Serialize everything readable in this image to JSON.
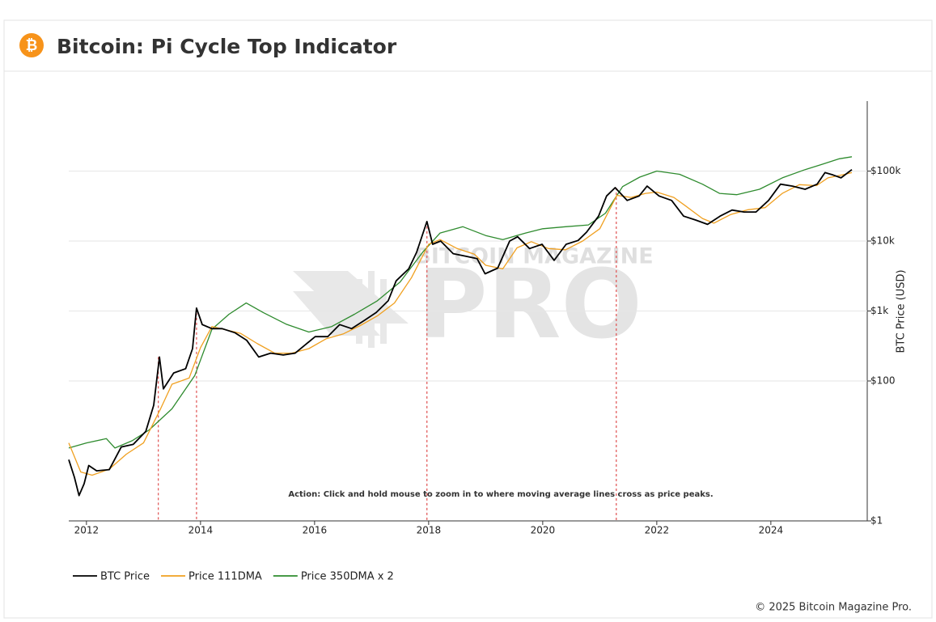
{
  "chart_data": {
    "type": "line",
    "title": "Bitcoin: Pi Cycle Top Indicator",
    "icon": "₿",
    "ylabel": "BTC Price (USD)",
    "annotation": "Action: Click and hold mouse to zoom in to where moving average lines cross as price peaks.",
    "watermark": [
      "BITCOIN MAGAZINE",
      "PRO"
    ],
    "copyright": "© 2025 Bitcoin Magazine Pro.",
    "yscale": "log",
    "grid": true,
    "legend": "bottom-left",
    "xlim": [
      2011.69,
      2025.69
    ],
    "xticks": [
      2012,
      2014,
      2016,
      2018,
      2020,
      2022,
      2024
    ],
    "ylim": [
      1,
      1000000
    ],
    "yticks": [
      {
        "value": 1,
        "label": "$1"
      },
      {
        "value": 100,
        "label": "$100"
      },
      {
        "value": 1000,
        "label": "$1k"
      },
      {
        "value": 10000,
        "label": "$10k"
      },
      {
        "value": 100000,
        "label": "$100k"
      }
    ],
    "crossovers": {
      "color": "#e05050",
      "x": [
        2013.26,
        2013.93,
        2017.97,
        2021.29
      ]
    },
    "series": [
      {
        "name": "BTC Price",
        "color": "#000000",
        "x": [
          2011.69,
          2011.79,
          2011.87,
          2011.96,
          2012.04,
          2012.18,
          2012.4,
          2012.61,
          2012.82,
          2013.04,
          2013.18,
          2013.28,
          2013.35,
          2013.53,
          2013.74,
          2013.86,
          2013.93,
          2014.03,
          2014.2,
          2014.38,
          2014.6,
          2014.81,
          2015.02,
          2015.23,
          2015.45,
          2015.66,
          2015.84,
          2016.01,
          2016.23,
          2016.44,
          2016.65,
          2016.87,
          2017.08,
          2017.29,
          2017.43,
          2017.65,
          2017.79,
          2017.97,
          2018.07,
          2018.21,
          2018.43,
          2018.64,
          2018.85,
          2018.99,
          2019.21,
          2019.42,
          2019.56,
          2019.77,
          2019.99,
          2020.2,
          2020.41,
          2020.62,
          2020.77,
          2020.98,
          2021.12,
          2021.27,
          2021.48,
          2021.69,
          2021.83,
          2022.04,
          2022.26,
          2022.47,
          2022.68,
          2022.89,
          2023.11,
          2023.32,
          2023.53,
          2023.74,
          2023.96,
          2024.17,
          2024.38,
          2024.6,
          2024.81,
          2024.95,
          2025.09,
          2025.23,
          2025.42
        ],
        "values": [
          7.5,
          4.2,
          2.3,
          3.4,
          6.2,
          5.2,
          5.4,
          11.4,
          12.4,
          19,
          45,
          220,
          77,
          130,
          150,
          290,
          1100,
          640,
          560,
          560,
          490,
          380,
          220,
          250,
          235,
          250,
          330,
          430,
          430,
          640,
          560,
          730,
          950,
          1400,
          2700,
          4000,
          6900,
          19000,
          9000,
          10000,
          6600,
          6100,
          5600,
          3400,
          4100,
          10000,
          11500,
          7800,
          9000,
          5300,
          9000,
          10200,
          13400,
          22700,
          44000,
          58000,
          38000,
          44000,
          61000,
          44000,
          38000,
          22700,
          20000,
          17300,
          22700,
          27700,
          26000,
          26000,
          38000,
          65000,
          61000,
          55000,
          65000,
          95000,
          88000,
          80000,
          105000
        ]
      },
      {
        "name": "Price 111DMA",
        "color": "#f0a020",
        "x": [
          2011.69,
          2011.9,
          2012.1,
          2012.4,
          2012.7,
          2013.0,
          2013.3,
          2013.5,
          2013.8,
          2014.0,
          2014.2,
          2014.4,
          2014.7,
          2015.0,
          2015.3,
          2015.6,
          2015.9,
          2016.2,
          2016.5,
          2016.8,
          2017.1,
          2017.4,
          2017.7,
          2018.0,
          2018.2,
          2018.5,
          2018.8,
          2019.0,
          2019.3,
          2019.55,
          2019.8,
          2020.1,
          2020.4,
          2020.7,
          2021.0,
          2021.3,
          2021.55,
          2021.8,
          2022.0,
          2022.3,
          2022.5,
          2022.8,
          2023.0,
          2023.3,
          2023.6,
          2023.9,
          2024.2,
          2024.5,
          2024.8,
          2025.0,
          2025.3,
          2025.42
        ],
        "values": [
          13,
          5,
          4.5,
          5.5,
          9,
          13,
          40,
          90,
          110,
          300,
          600,
          550,
          480,
          340,
          250,
          250,
          290,
          400,
          470,
          620,
          850,
          1300,
          3000,
          9000,
          10500,
          7800,
          6500,
          4500,
          4000,
          8000,
          9800,
          7800,
          7500,
          10000,
          15000,
          45000,
          42000,
          48000,
          50000,
          42000,
          32000,
          21000,
          18000,
          24000,
          28000,
          30000,
          48000,
          64000,
          62000,
          80000,
          90000,
          95000
        ]
      },
      {
        "name": "Price 350DMA x 2",
        "color": "#2e8b2e",
        "x": [
          2011.69,
          2012.0,
          2012.35,
          2012.5,
          2012.8,
          2013.1,
          2013.5,
          2013.9,
          2014.2,
          2014.5,
          2014.8,
          2015.1,
          2015.5,
          2015.9,
          2016.3,
          2016.7,
          2017.1,
          2017.5,
          2017.9,
          2018.2,
          2018.6,
          2019.0,
          2019.3,
          2019.7,
          2020.0,
          2020.4,
          2020.8,
          2021.1,
          2021.4,
          2021.7,
          2022.0,
          2022.4,
          2022.8,
          2023.1,
          2023.4,
          2023.8,
          2024.2,
          2024.6,
          2024.9,
          2025.2,
          2025.42
        ],
        "values": [
          11,
          13,
          15,
          11,
          14,
          20,
          40,
          120,
          550,
          900,
          1300,
          950,
          650,
          500,
          600,
          900,
          1400,
          2600,
          7000,
          13000,
          16000,
          12000,
          10500,
          13000,
          15000,
          16000,
          17000,
          25000,
          60000,
          82000,
          100000,
          90000,
          65000,
          48000,
          46000,
          55000,
          80000,
          105000,
          125000,
          150000,
          160000
        ]
      }
    ]
  }
}
